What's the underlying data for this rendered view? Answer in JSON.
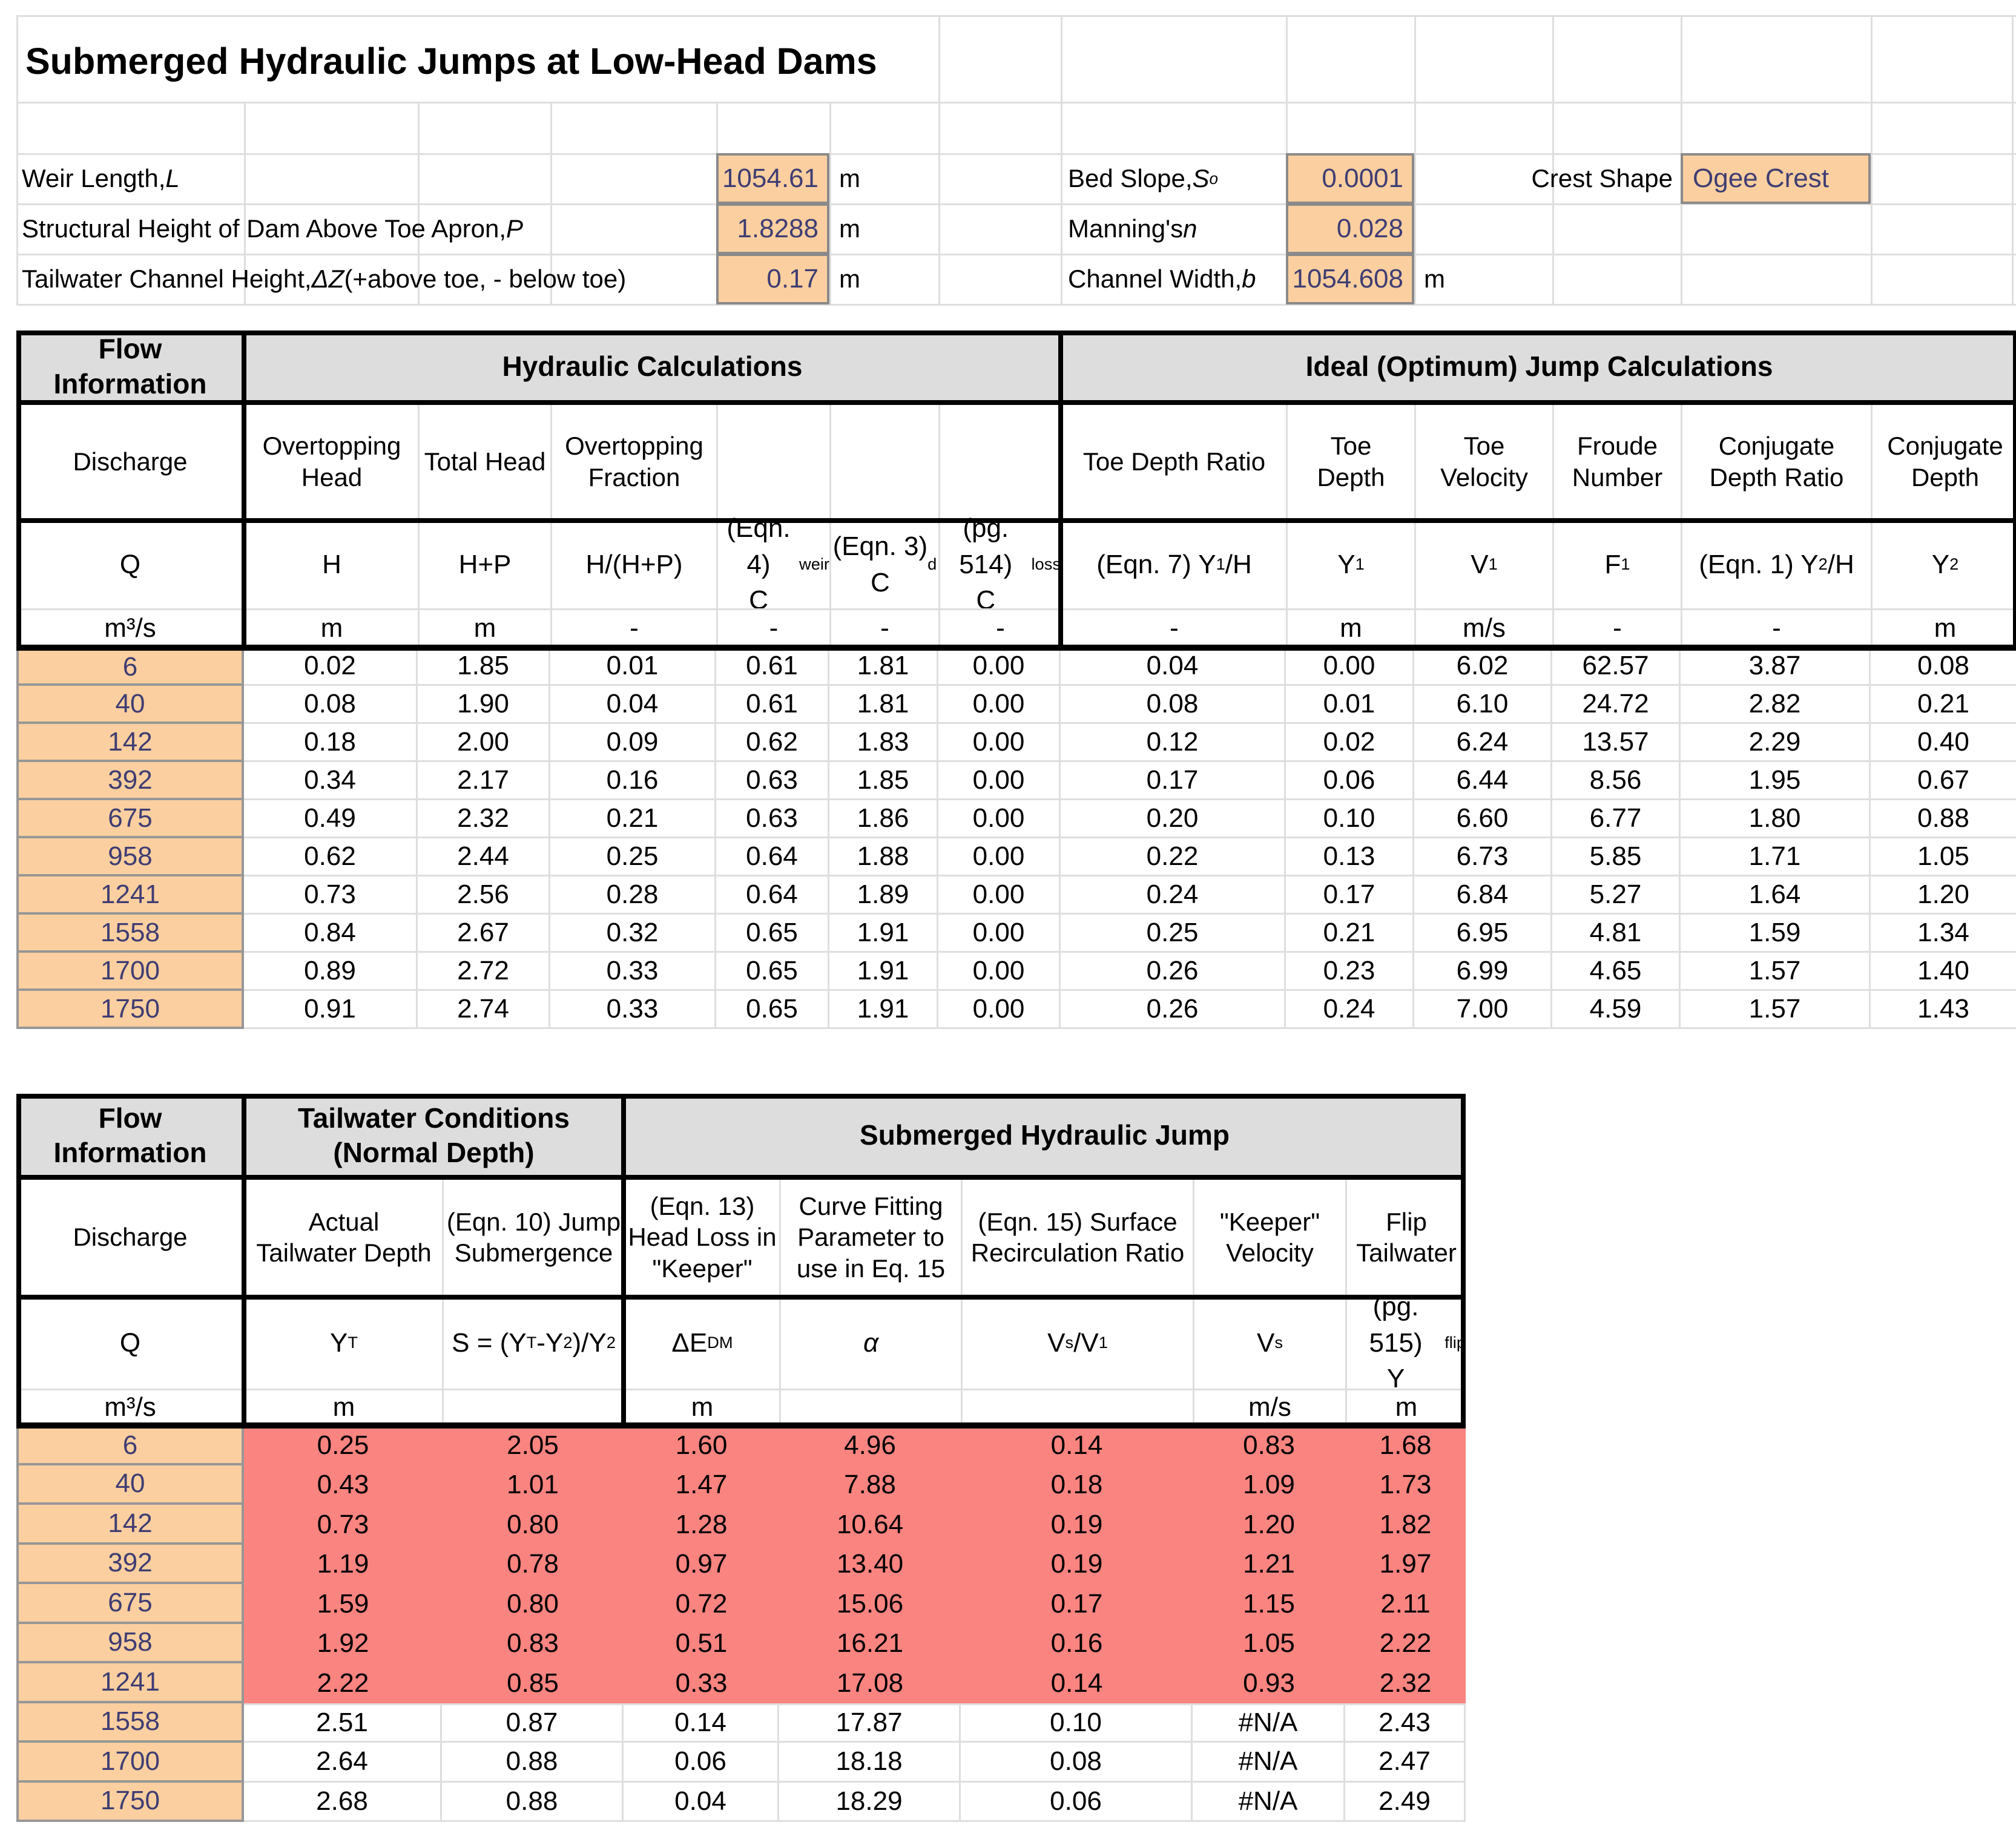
{
  "title": "Submerged Hydraulic Jumps at Low-Head Dams",
  "colors": {
    "input_fill": "#fbcfa0",
    "flag_fill": "#fa8480",
    "header_fill": "#dddddd",
    "input_text": "#3f3d73",
    "gridline": "#dedede"
  },
  "parameters": {
    "left": [
      {
        "pre": "Weir Length, ",
        "sym": "L",
        "sub": "",
        "post": "",
        "value": "1054.61",
        "unit": "m"
      },
      {
        "pre": "Structural Height of Dam Above Toe Apron, ",
        "sym": "P",
        "sub": "",
        "post": "",
        "value": "1.8288",
        "unit": "m"
      },
      {
        "pre": "Tailwater Channel Height, ",
        "sym": "ΔZ",
        "sub": "",
        "post": " (+above toe, - below toe)",
        "value": "0.17",
        "unit": "m"
      }
    ],
    "right": [
      {
        "pre": "Bed Slope, ",
        "sym": "S",
        "sub": "o",
        "post": "",
        "value": "0.0001",
        "unit": ""
      },
      {
        "pre": "Manning's ",
        "sym": "n",
        "sub": "",
        "post": "",
        "value": "0.028",
        "unit": ""
      },
      {
        "pre": "Channel Width, ",
        "sym": "b",
        "sub": "",
        "post": "",
        "value": "1054.608",
        "unit": "m"
      }
    ],
    "crest": {
      "label": "Crest Shape",
      "value": "Ogee Crest"
    }
  },
  "table1": {
    "groups": [
      "Flow Information",
      "Hydraulic Calculations",
      "Ideal (Optimum) Jump Calculations"
    ],
    "names": [
      "Discharge",
      "Overtopping\nHead",
      "Total Head",
      "Overtopping\nFraction",
      "",
      "",
      "",
      "Toe Depth Ratio",
      "Toe\nDepth",
      "Toe\nVelocity",
      "Froude\nNumber",
      "Conjugate\nDepth Ratio",
      "Conjugate\nDepth"
    ],
    "symbols_html": [
      "Q",
      "H",
      "H+P",
      "H/(H+P)",
      "(Eqn. 4)<br>C<sub>weir</sub>",
      "(Eqn. 3)<br>C<sub>d</sub>",
      "(pg. 514)<br>C<sub>loss</sub>",
      "(Eqn. 7) Y<sub>1</sub>/H",
      "Y<sub>1</sub>",
      "V<sub>1</sub>",
      "F<sub>1</sub>",
      "(Eqn. 1) Y<sub>2</sub>/H",
      "Y<sub>2</sub>"
    ],
    "units": [
      "m³/s",
      "m",
      "m",
      "-",
      "-",
      "-",
      "-",
      "-",
      "m",
      "m/s",
      "-",
      "-",
      "m"
    ],
    "rows": [
      [
        "6",
        "0.02",
        "1.85",
        "0.01",
        "0.61",
        "1.81",
        "0.00",
        "0.04",
        "0.00",
        "6.02",
        "62.57",
        "3.87",
        "0.08"
      ],
      [
        "40",
        "0.08",
        "1.90",
        "0.04",
        "0.61",
        "1.81",
        "0.00",
        "0.08",
        "0.01",
        "6.10",
        "24.72",
        "2.82",
        "0.21"
      ],
      [
        "142",
        "0.18",
        "2.00",
        "0.09",
        "0.62",
        "1.83",
        "0.00",
        "0.12",
        "0.02",
        "6.24",
        "13.57",
        "2.29",
        "0.40"
      ],
      [
        "392",
        "0.34",
        "2.17",
        "0.16",
        "0.63",
        "1.85",
        "0.00",
        "0.17",
        "0.06",
        "6.44",
        "8.56",
        "1.95",
        "0.67"
      ],
      [
        "675",
        "0.49",
        "2.32",
        "0.21",
        "0.63",
        "1.86",
        "0.00",
        "0.20",
        "0.10",
        "6.60",
        "6.77",
        "1.80",
        "0.88"
      ],
      [
        "958",
        "0.62",
        "2.44",
        "0.25",
        "0.64",
        "1.88",
        "0.00",
        "0.22",
        "0.13",
        "6.73",
        "5.85",
        "1.71",
        "1.05"
      ],
      [
        "1241",
        "0.73",
        "2.56",
        "0.28",
        "0.64",
        "1.89",
        "0.00",
        "0.24",
        "0.17",
        "6.84",
        "5.27",
        "1.64",
        "1.20"
      ],
      [
        "1558",
        "0.84",
        "2.67",
        "0.32",
        "0.65",
        "1.91",
        "0.00",
        "0.25",
        "0.21",
        "6.95",
        "4.81",
        "1.59",
        "1.34"
      ],
      [
        "1700",
        "0.89",
        "2.72",
        "0.33",
        "0.65",
        "1.91",
        "0.00",
        "0.26",
        "0.23",
        "6.99",
        "4.65",
        "1.57",
        "1.40"
      ],
      [
        "1750",
        "0.91",
        "2.74",
        "0.33",
        "0.65",
        "1.91",
        "0.00",
        "0.26",
        "0.24",
        "7.00",
        "4.59",
        "1.57",
        "1.43"
      ]
    ]
  },
  "table2": {
    "groups": [
      "Flow Information",
      "Tailwater Conditions\n(Normal Depth)",
      "Submerged Hydraulic Jump"
    ],
    "names": [
      "Discharge",
      "Actual\nTailwater Depth",
      "(Eqn. 10) Jump\nSubmergence",
      "(Eqn. 13)\nHead Loss in\n\"Keeper\"",
      "Curve Fitting\nParameter to\nuse in Eq. 15",
      "(Eqn. 15) Surface\nRecirculation Ratio",
      "\"Keeper\"\nVelocity",
      "Flip\nTailwater"
    ],
    "symbols_html": [
      "Q",
      "Y<sub>T</sub>",
      "S = (Y<sub>T</sub>-Y<sub>2</sub>)/Y<sub>2</sub>",
      "ΔE<sub>DM</sub>",
      "<i>α</i>",
      "V<sub>s</sub>/V<sub>1</sub>",
      "V<sub>s</sub>",
      "(pg. 515)<br>Y<sub>flip</sub>"
    ],
    "units": [
      "m³/s",
      "m",
      "",
      "m",
      "",
      "",
      "m/s",
      "m"
    ],
    "flagged_row_count": 7,
    "rows": [
      [
        "6",
        "0.25",
        "2.05",
        "1.60",
        "4.96",
        "0.14",
        "0.83",
        "1.68"
      ],
      [
        "40",
        "0.43",
        "1.01",
        "1.47",
        "7.88",
        "0.18",
        "1.09",
        "1.73"
      ],
      [
        "142",
        "0.73",
        "0.80",
        "1.28",
        "10.64",
        "0.19",
        "1.20",
        "1.82"
      ],
      [
        "392",
        "1.19",
        "0.78",
        "0.97",
        "13.40",
        "0.19",
        "1.21",
        "1.97"
      ],
      [
        "675",
        "1.59",
        "0.80",
        "0.72",
        "15.06",
        "0.17",
        "1.15",
        "2.11"
      ],
      [
        "958",
        "1.92",
        "0.83",
        "0.51",
        "16.21",
        "0.16",
        "1.05",
        "2.22"
      ],
      [
        "1241",
        "2.22",
        "0.85",
        "0.33",
        "17.08",
        "0.14",
        "0.93",
        "2.32"
      ],
      [
        "1558",
        "2.51",
        "0.87",
        "0.14",
        "17.87",
        "0.10",
        "#N/A",
        "2.43"
      ],
      [
        "1700",
        "2.64",
        "0.88",
        "0.06",
        "18.18",
        "0.08",
        "#N/A",
        "2.47"
      ],
      [
        "1750",
        "2.68",
        "0.88",
        "0.04",
        "18.29",
        "0.06",
        "#N/A",
        "2.49"
      ]
    ]
  }
}
